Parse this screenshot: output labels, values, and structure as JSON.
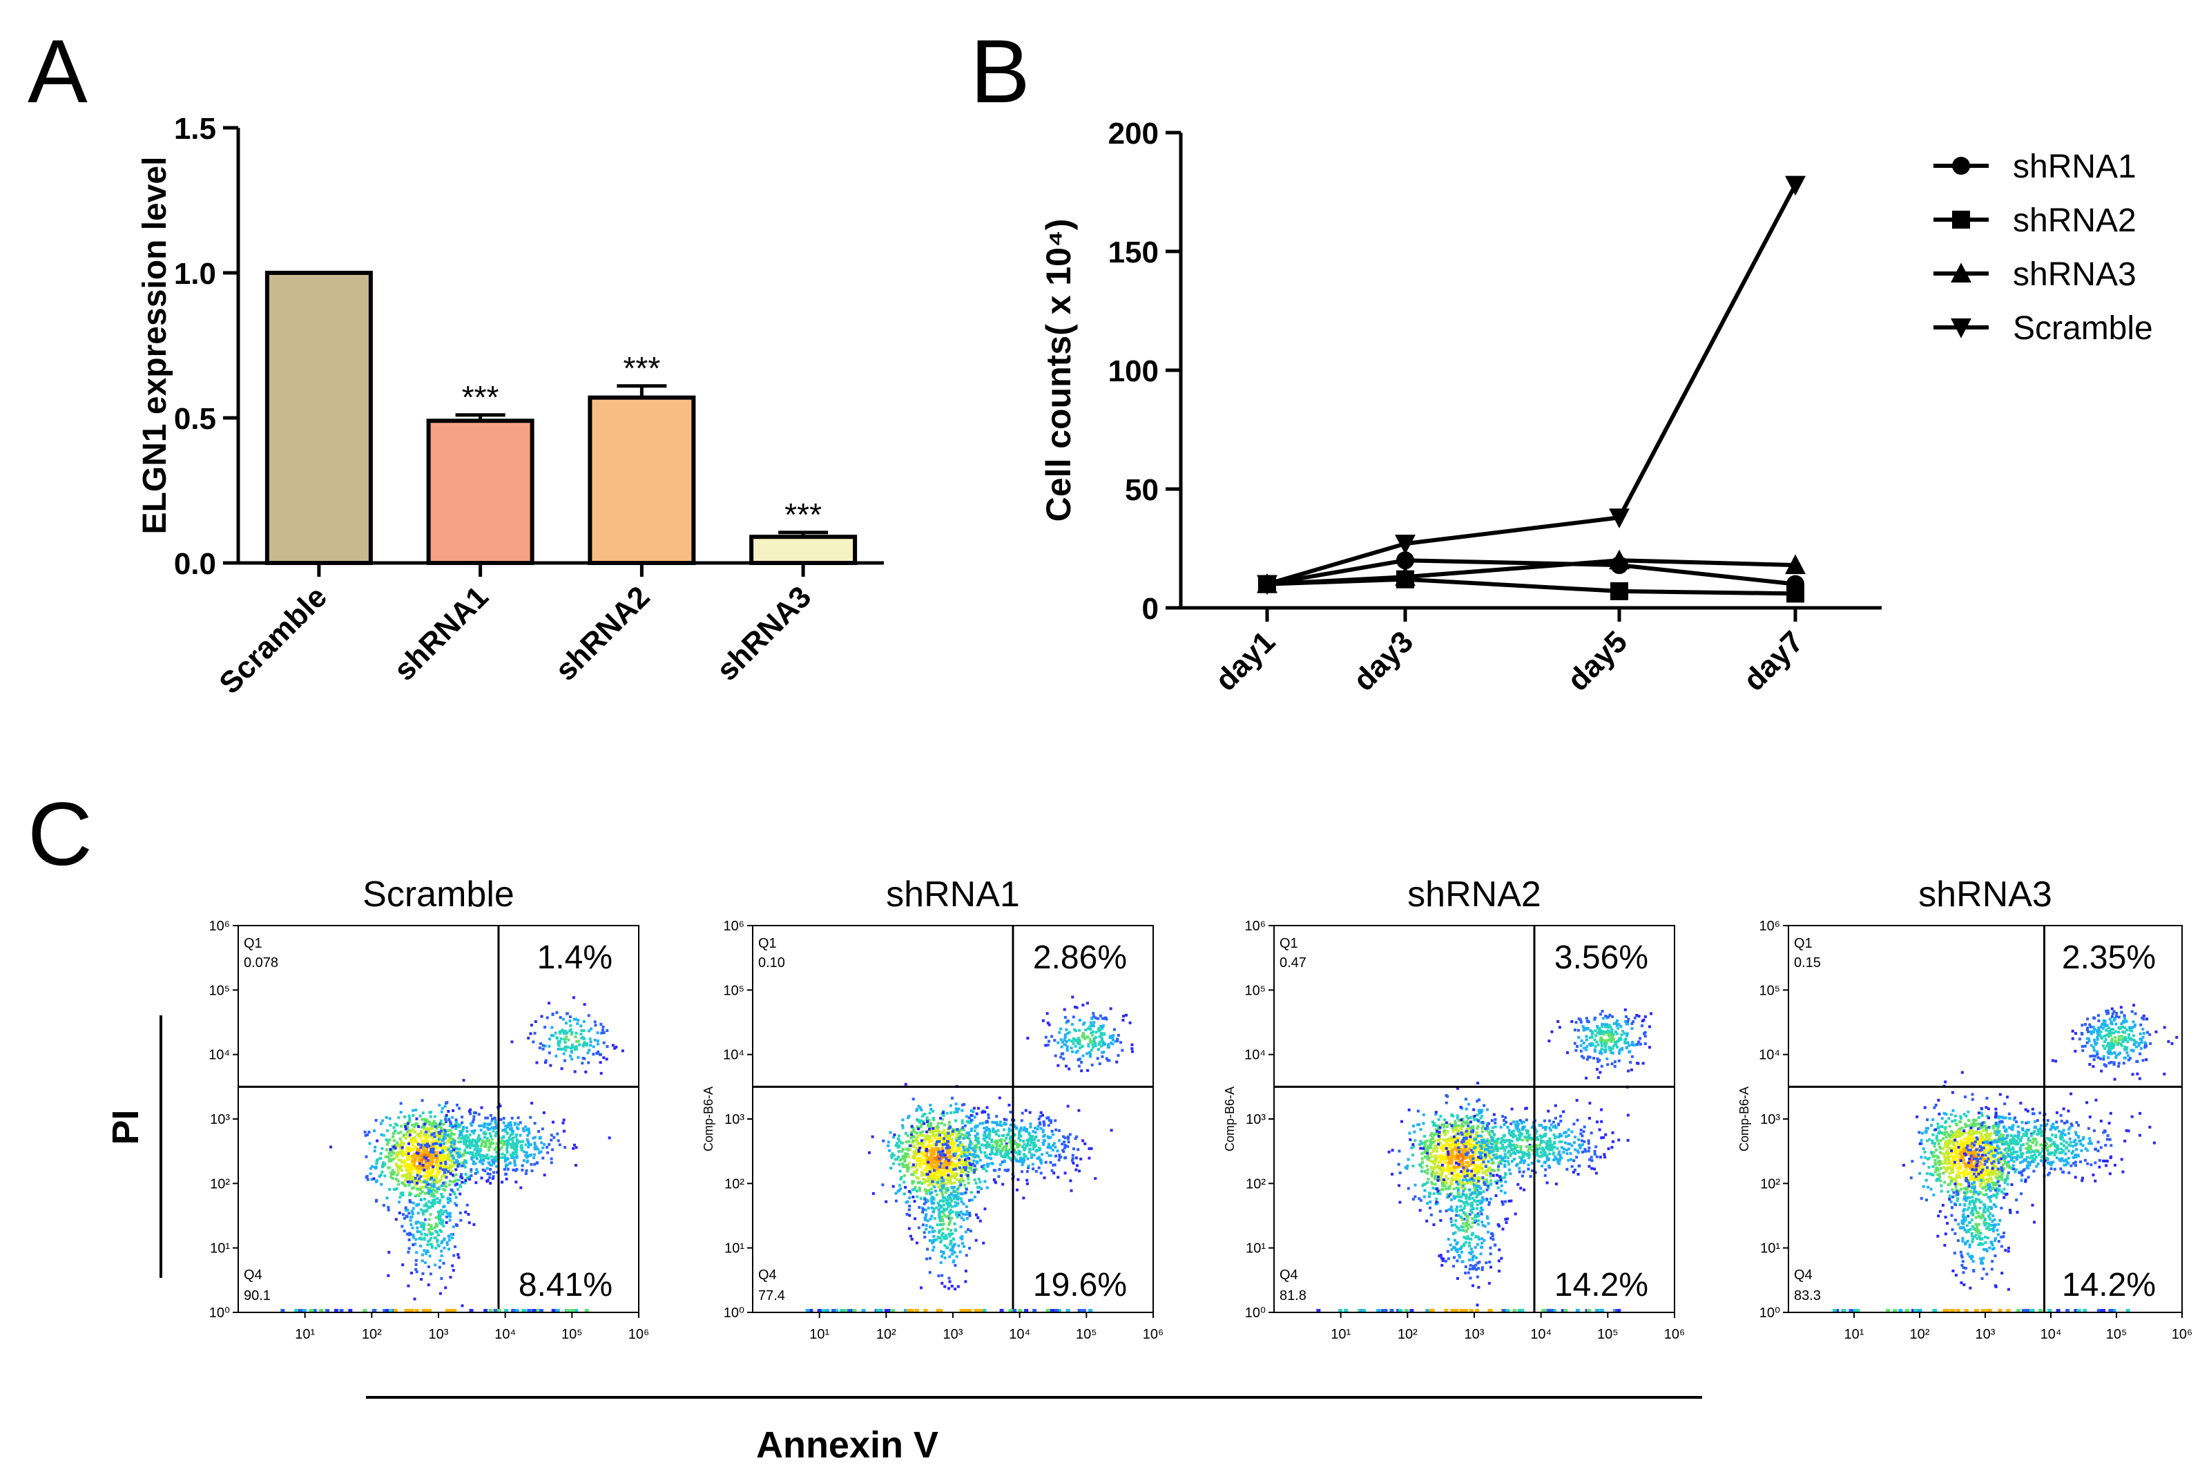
{
  "panels": {
    "a": "A",
    "b": "B",
    "c": "C"
  },
  "chart_data": [
    {
      "id": "A",
      "type": "bar",
      "title": "",
      "xlabel": "",
      "ylabel": "ELGN1 expression level",
      "ylim": [
        0,
        1.5
      ],
      "yticks": [
        0,
        0.5,
        1,
        1.5
      ],
      "ytick_labels": [
        "0.0",
        "0.5",
        "1.0",
        "1.5"
      ],
      "categories": [
        "Scramble",
        "shRNA1",
        "shRNA2",
        "shRNA3"
      ],
      "values": [
        1.0,
        0.49,
        0.57,
        0.09
      ],
      "errors": [
        0,
        0.02,
        0.04,
        0.015
      ],
      "colors": [
        "#c8b98f",
        "#f5a185",
        "#f7bd82",
        "#f5f2c4"
      ],
      "significance": [
        "",
        "***",
        "***",
        "***"
      ]
    },
    {
      "id": "B",
      "type": "line",
      "title": "",
      "xlabel": "",
      "ylabel": "Cell counts( x 10⁴)",
      "ylim": [
        0,
        200
      ],
      "yticks": [
        0,
        50,
        100,
        150,
        200
      ],
      "categories": [
        "day1",
        "day3",
        "day5",
        "day7"
      ],
      "series": [
        {
          "name": "shRNA1",
          "marker": "circle",
          "values": [
            10,
            20,
            18,
            10
          ]
        },
        {
          "name": "shRNA2",
          "marker": "square",
          "values": [
            10,
            12,
            7,
            6
          ]
        },
        {
          "name": "shRNA3",
          "marker": "triangle-up",
          "values": [
            10,
            13,
            20,
            18
          ]
        },
        {
          "name": "Scramble",
          "marker": "triangle-down",
          "values": [
            10,
            27,
            38,
            178
          ]
        }
      ],
      "legend": "right"
    },
    {
      "id": "C",
      "type": "scatter",
      "subtype": "flow-cytometry-quadrants",
      "xlabel": "Annexin V",
      "ylabel": "PI",
      "axis_range_log10": [
        0,
        6
      ],
      "xtick_labels": [
        "10¹",
        "10²",
        "10³",
        "10⁴",
        "10⁵",
        "10⁶"
      ],
      "ytick_labels": [
        "10⁰",
        "10¹",
        "10²",
        "10³",
        "10⁴",
        "10⁵",
        "10⁶"
      ],
      "quadrant_gate_log10": {
        "x": 3.9,
        "y": 3.5
      },
      "quadrant_names": {
        "q1": "Q1",
        "q4": "Q4"
      },
      "yaxis_param": "Comp-B6-A",
      "plots": [
        {
          "title": "Scramble",
          "q1": "0.078",
          "q2": "1.4%",
          "q3": "8.41%",
          "q4": "90.1",
          "show_param": false
        },
        {
          "title": "shRNA1",
          "q1": "0.10",
          "q2": "2.86%",
          "q3": "19.6%",
          "q4": "77.4",
          "show_param": true
        },
        {
          "title": "shRNA2",
          "q1": "0.47",
          "q2": "3.56%",
          "q3": "14.2%",
          "q4": "81.8",
          "show_param": true
        },
        {
          "title": "shRNA3",
          "q1": "0.15",
          "q2": "2.35%",
          "q3": "14.2%",
          "q4": "83.3",
          "show_param": true
        }
      ]
    }
  ]
}
